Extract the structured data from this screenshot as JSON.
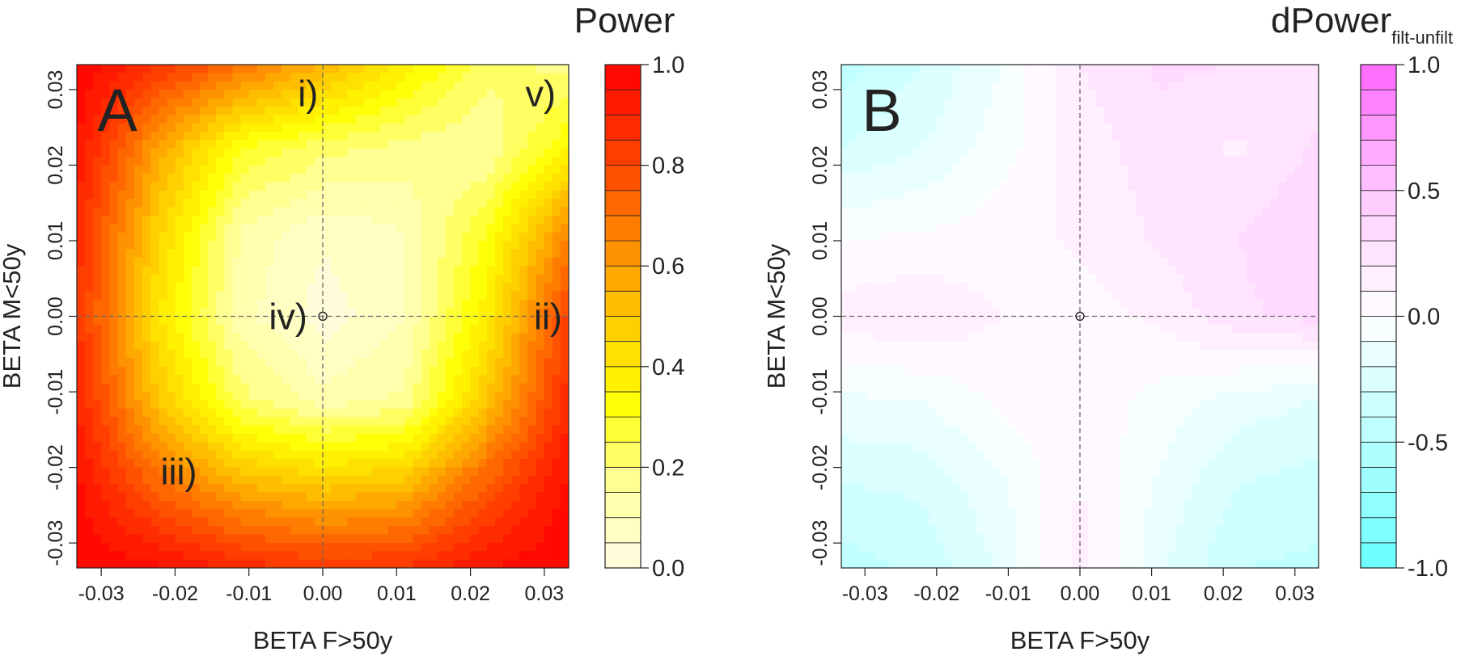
{
  "chart_data": [
    {
      "type": "heatmap",
      "panel_label": "A",
      "title": "Power",
      "xlabel": "BETA F>50y",
      "ylabel": "BETA M<50y",
      "xlim": [
        -0.0333,
        0.0333
      ],
      "ylim": [
        -0.0333,
        0.0333
      ],
      "x_ticks": [
        -0.03,
        -0.02,
        -0.01,
        0.0,
        0.01,
        0.02,
        0.03
      ],
      "x_tick_labels": [
        "-0.03",
        "-0.02",
        "-0.01",
        "0.00",
        "0.01",
        "0.02",
        "0.03"
      ],
      "y_ticks": [
        -0.03,
        -0.02,
        -0.01,
        0.0,
        0.01,
        0.02,
        0.03
      ],
      "y_tick_labels": [
        "-0.03",
        "-0.02",
        "-0.01",
        "0.00",
        "0.01",
        "0.02",
        "0.03"
      ],
      "reference_lines": {
        "x": 0.0,
        "y": 0.0,
        "style": "dashed"
      },
      "reference_point": {
        "x": 0.0,
        "y": 0.0
      },
      "annotations": [
        {
          "text": "i)",
          "x": -0.002,
          "y": 0.0295
        },
        {
          "text": "ii)",
          "x": 0.0305,
          "y": 0.0
        },
        {
          "text": "iii)",
          "x": -0.0195,
          "y": -0.0205
        },
        {
          "text": "iv)",
          "x": -0.0047,
          "y": 0.0
        },
        {
          "text": "v)",
          "x": 0.0295,
          "y": 0.0295
        }
      ],
      "colorbar": {
        "range": [
          0.0,
          1.0
        ],
        "levels": 20,
        "tick_values": [
          0.0,
          0.2,
          0.4,
          0.6,
          0.8,
          1.0
        ],
        "tick_labels": [
          "0.0",
          "0.2",
          "0.4",
          "0.6",
          "0.8",
          "1.0"
        ],
        "colors": [
          "#fffde0",
          "#ffffff33",
          "#ffff00",
          "#ff8c00",
          "#ff0000"
        ]
      },
      "grid_x": [
        -0.0333,
        -0.0222,
        -0.0111,
        0.0,
        0.0111,
        0.0222,
        0.0333
      ],
      "grid_y": [
        -0.0333,
        -0.0222,
        -0.0111,
        0.0,
        0.0111,
        0.0222,
        0.0333
      ],
      "z": [
        [
          1.0,
          0.96,
          0.88,
          0.84,
          0.86,
          0.95,
          1.0
        ],
        [
          0.96,
          0.72,
          0.55,
          0.48,
          0.52,
          0.75,
          0.96
        ],
        [
          0.9,
          0.5,
          0.22,
          0.12,
          0.16,
          0.5,
          0.88
        ],
        [
          0.86,
          0.4,
          0.12,
          0.02,
          0.1,
          0.38,
          0.82
        ],
        [
          0.88,
          0.46,
          0.14,
          0.06,
          0.1,
          0.3,
          0.65
        ],
        [
          0.95,
          0.58,
          0.3,
          0.22,
          0.18,
          0.15,
          0.35
        ],
        [
          1.0,
          0.85,
          0.7,
          0.55,
          0.38,
          0.22,
          0.18
        ]
      ]
    },
    {
      "type": "heatmap",
      "panel_label": "B",
      "title": "dPower",
      "title_subscript": "filt-unfilt",
      "xlabel": "BETA F>50y",
      "ylabel": "BETA M<50y",
      "xlim": [
        -0.0333,
        0.0333
      ],
      "ylim": [
        -0.0333,
        0.0333
      ],
      "x_ticks": [
        -0.03,
        -0.02,
        -0.01,
        0.0,
        0.01,
        0.02,
        0.03
      ],
      "x_tick_labels": [
        "-0.03",
        "-0.02",
        "-0.01",
        "0.00",
        "0.01",
        "0.02",
        "0.03"
      ],
      "y_ticks": [
        -0.03,
        -0.02,
        -0.01,
        0.0,
        0.01,
        0.02,
        0.03
      ],
      "y_tick_labels": [
        "-0.03",
        "-0.02",
        "-0.01",
        "0.00",
        "0.01",
        "0.02",
        "0.03"
      ],
      "reference_lines": {
        "x": 0.0,
        "y": 0.0,
        "style": "dashed"
      },
      "reference_point": {
        "x": 0.0,
        "y": 0.0
      },
      "colorbar": {
        "range": [
          -1.0,
          1.0
        ],
        "levels": 20,
        "tick_values": [
          -1.0,
          -0.5,
          0.0,
          0.5,
          1.0
        ],
        "tick_labels": [
          "-1.0",
          "-0.5",
          "0.0",
          "0.5",
          "1.0"
        ],
        "colors": [
          "#66ffff",
          "#ffffff",
          "#ff66ff"
        ]
      },
      "grid_x": [
        -0.0333,
        -0.0222,
        -0.0111,
        0.0,
        0.0111,
        0.0222,
        0.0333
      ],
      "grid_y": [
        -0.0333,
        -0.0222,
        -0.0111,
        0.0,
        0.0111,
        0.0222,
        0.0333
      ],
      "z": [
        [
          -0.45,
          -0.38,
          -0.18,
          0.15,
          -0.18,
          -0.4,
          -0.42
        ],
        [
          -0.3,
          -0.28,
          -0.12,
          0.1,
          -0.12,
          -0.3,
          -0.35
        ],
        [
          -0.12,
          -0.1,
          0.02,
          0.08,
          -0.04,
          -0.15,
          -0.2
        ],
        [
          0.15,
          0.2,
          0.1,
          0.06,
          0.12,
          0.28,
          0.34
        ],
        [
          -0.02,
          0.0,
          0.05,
          0.12,
          0.22,
          0.3,
          0.4
        ],
        [
          -0.3,
          -0.2,
          -0.05,
          0.15,
          0.25,
          0.18,
          0.32
        ],
        [
          -0.45,
          -0.3,
          -0.1,
          0.2,
          0.32,
          0.3,
          0.25
        ]
      ]
    }
  ]
}
